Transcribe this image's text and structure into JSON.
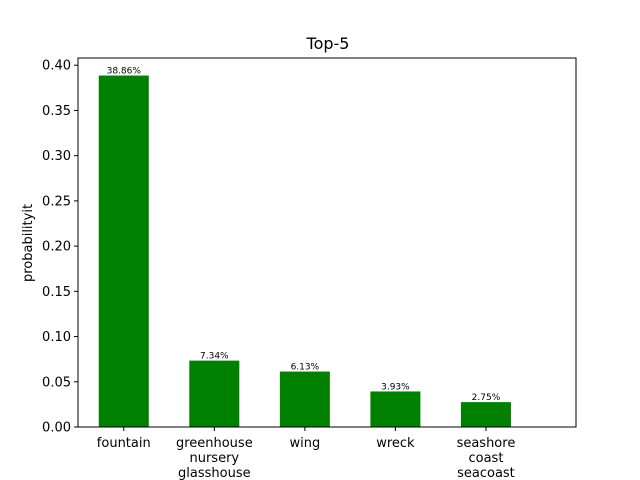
{
  "chart_data": {
    "type": "bar",
    "title": "Top-5",
    "xlabel": "",
    "ylabel": "probabilityit",
    "categories": [
      [
        "fountain"
      ],
      [
        "greenhouse",
        "nursery",
        "glasshouse"
      ],
      [
        "wing"
      ],
      [
        "wreck"
      ],
      [
        "seashore",
        "coast",
        "seacoast"
      ]
    ],
    "values": [
      0.3886,
      0.0734,
      0.0613,
      0.0393,
      0.0275
    ],
    "data_labels": [
      "38.86%",
      "7.34%",
      "6.13%",
      "3.93%",
      "2.75%"
    ],
    "ylim": [
      0,
      0.408
    ],
    "yticks": [
      0.0,
      0.05,
      0.1,
      0.15,
      0.2,
      0.25,
      0.3,
      0.35,
      0.4
    ],
    "ytick_labels": [
      "0.00",
      "0.05",
      "0.10",
      "0.15",
      "0.20",
      "0.25",
      "0.30",
      "0.35",
      "0.40"
    ],
    "bar_color": "#008000",
    "grid": false,
    "legend": "none"
  }
}
